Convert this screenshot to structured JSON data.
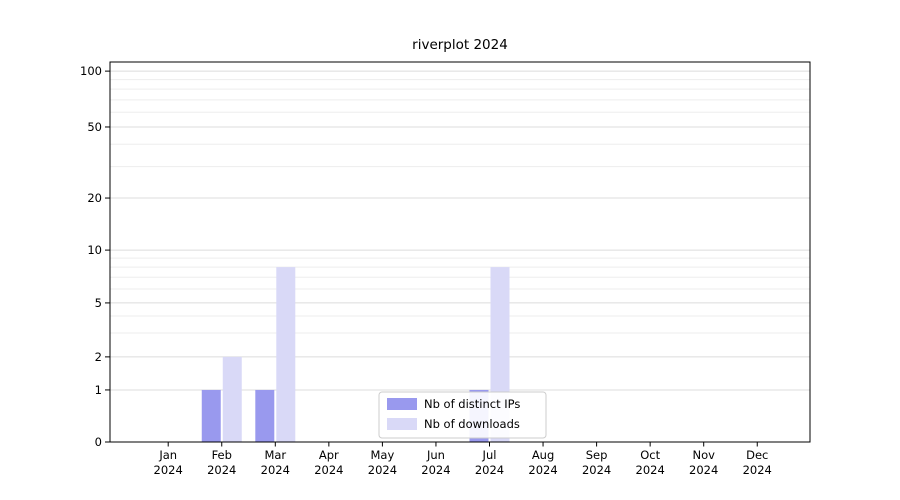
{
  "chart_data": {
    "type": "bar",
    "title": "riverplot 2024",
    "categories": [
      "Jan",
      "Feb",
      "Mar",
      "Apr",
      "May",
      "Jun",
      "Jul",
      "Aug",
      "Sep",
      "Oct",
      "Nov",
      "Dec"
    ],
    "year": "2024",
    "series": [
      {
        "name": "Nb of distinct IPs",
        "color": "#9999ee",
        "values": [
          0,
          1,
          1,
          0,
          0,
          0,
          1,
          0,
          0,
          0,
          0,
          0
        ]
      },
      {
        "name": "Nb of downloads",
        "color": "#d9d9f7",
        "values": [
          0,
          2,
          8,
          0,
          0,
          0,
          8,
          0,
          0,
          0,
          0,
          0
        ]
      }
    ],
    "yticks": [
      0,
      1,
      2,
      5,
      10,
      20,
      50,
      100
    ],
    "ylim": [
      0,
      100
    ],
    "yscale": "log-like",
    "grid": true,
    "legend_position": "bottom-center",
    "xlabel": "",
    "ylabel": ""
  }
}
